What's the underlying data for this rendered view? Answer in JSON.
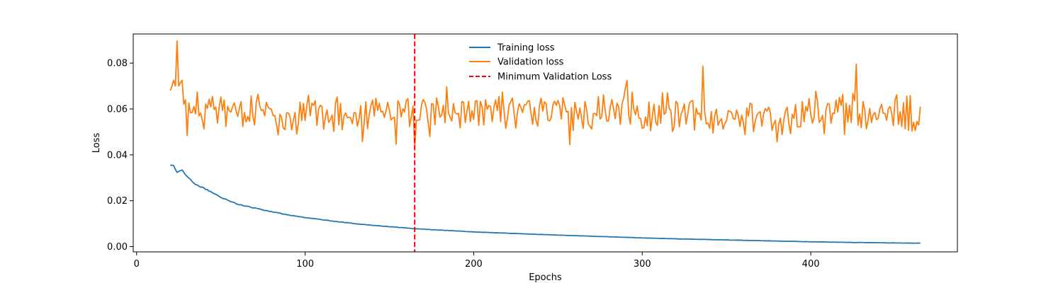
{
  "chart_data": {
    "type": "line",
    "title": "",
    "xlabel": "Epochs",
    "ylabel": "Loss",
    "xlim": [
      -2,
      487
    ],
    "ylim": [
      -0.0023,
      0.0927
    ],
    "xticks": [
      0,
      100,
      200,
      300,
      400
    ],
    "yticks": [
      0.0,
      0.02,
      0.04,
      0.06,
      0.08
    ],
    "ytick_labels": [
      "0.00",
      "0.02",
      "0.04",
      "0.06",
      "0.08"
    ],
    "grid": false,
    "legend_position": "top-center",
    "x_start": 20,
    "x_end": 465,
    "series": [
      {
        "name": "Training loss",
        "color": "#1f77b4",
        "line_style": "solid",
        "anchors_x": [
          20,
          22,
          24,
          27,
          30,
          35,
          40,
          45,
          50,
          55,
          60,
          70,
          80,
          90,
          100,
          110,
          120,
          130,
          140,
          150,
          165,
          180,
          200,
          225,
          250,
          275,
          300,
          325,
          350,
          375,
          400,
          425,
          450,
          465
        ],
        "anchors_y": [
          0.0354,
          0.0352,
          0.0325,
          0.0332,
          0.0305,
          0.027,
          0.0255,
          0.0235,
          0.0215,
          0.02,
          0.0185,
          0.0168,
          0.0152,
          0.0138,
          0.0127,
          0.0117,
          0.0108,
          0.01,
          0.0093,
          0.0087,
          0.0078,
          0.0072,
          0.0064,
          0.0057,
          0.005,
          0.0044,
          0.0038,
          0.0033,
          0.0029,
          0.0025,
          0.0021,
          0.0018,
          0.0016,
          0.0015
        ],
        "noise_amplitude": 0.0006
      },
      {
        "name": "Validation loss",
        "color": "#ff7f0e",
        "line_style": "solid",
        "start_values": [
          0.068,
          0.07,
          0.0725,
          0.07,
          0.0897,
          0.07,
          0.0715,
          0.0725,
          0.062,
          0.064
        ],
        "base": 0.058,
        "noise_amplitude": 0.013,
        "noisy_values_from_x": 30,
        "noise_generator": {
          "seed": 12345,
          "every": 1
        },
        "pinned_values": {
          "165": 0.0433,
          "166": 0.055,
          "336": 0.0787,
          "427": 0.0795,
          "380": 0.0457,
          "257": 0.0445,
          "174": 0.048,
          "134": 0.0458
        },
        "max": 0.0897,
        "min": 0.0433
      }
    ],
    "vertical_lines": [
      {
        "name": "Minimum Validation Loss",
        "x": 165,
        "color": "#ff0000",
        "line_style": "dashed"
      }
    ]
  }
}
